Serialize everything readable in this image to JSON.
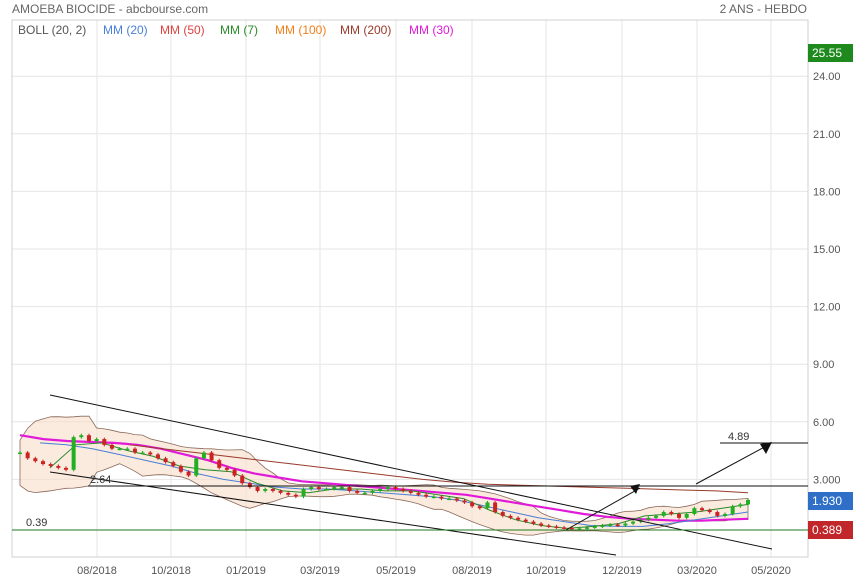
{
  "header": {
    "title": "AMOEBA BIOCIDE - abcbourse.com",
    "period": "2 ANS - HEBDO"
  },
  "legend": [
    {
      "label": "BOLL (20, 2)",
      "color": "#555555"
    },
    {
      "label": "MM (20)",
      "color": "#4a7fd6"
    },
    {
      "label": "MM (50)",
      "color": "#e04040"
    },
    {
      "label": "MM (7)",
      "color": "#2a8a2a"
    },
    {
      "label": "MM (100)",
      "color": "#f07f1a"
    },
    {
      "label": "MM (200)",
      "color": "#9a3a2a"
    },
    {
      "label": "MM (30)",
      "color": "#e01ad8"
    }
  ],
  "chart_data": {
    "type": "candlestick",
    "title": "AMOEBA BIOCIDE - abcbourse.com",
    "period": "2 ANS - HEBDO",
    "y_ticks": [
      "3.000",
      "6.00",
      "9.00",
      "12.00",
      "15.00",
      "18.00",
      "21.00",
      "24.00"
    ],
    "x_ticks": [
      "08/2018",
      "10/2018",
      "01/2019",
      "03/2019",
      "05/2019",
      "08/2019",
      "10/2019",
      "12/2019",
      "03/2020",
      "05/2020"
    ],
    "ylim": [
      0,
      26.8
    ],
    "price_labels": [
      {
        "text": "25.55",
        "value": 25.55,
        "color": "#1e8a1e"
      },
      {
        "text": "1.930",
        "value": 1.93,
        "color": "#2f6fc8"
      },
      {
        "text": "0.389",
        "value": 0.389,
        "color": "#c0262a"
      }
    ],
    "annotations": [
      {
        "text": "4.89",
        "value": 4.89
      },
      {
        "text": "2.64",
        "value": 2.64
      },
      {
        "text": "0.39",
        "value": 0.39
      }
    ],
    "close_series": [
      4.4,
      4.1,
      3.95,
      3.8,
      3.7,
      3.6,
      3.5,
      5.2,
      5.3,
      5.0,
      5.1,
      4.8,
      4.6,
      4.6,
      4.6,
      4.4,
      4.4,
      4.3,
      4.1,
      3.9,
      3.7,
      3.4,
      3.2,
      4.1,
      4.4,
      4.0,
      3.6,
      3.5,
      3.2,
      2.8,
      2.6,
      2.4,
      2.5,
      2.4,
      2.3,
      2.2,
      2.1,
      2.5,
      2.6,
      2.5,
      2.5,
      2.6,
      2.6,
      2.4,
      2.3,
      2.3,
      2.4,
      2.5,
      2.6,
      2.5,
      2.4,
      2.3,
      2.2,
      2.1,
      2.1,
      2.0,
      2.0,
      1.9,
      1.8,
      1.6,
      1.5,
      1.8,
      1.3,
      1.1,
      1.0,
      0.9,
      0.8,
      0.7,
      0.6,
      0.55,
      0.5,
      0.48,
      0.45,
      0.45,
      0.5,
      0.55,
      0.6,
      0.65,
      0.6,
      0.7,
      0.8,
      0.9,
      1.0,
      1.1,
      1.3,
      1.2,
      1.0,
      1.2,
      1.5,
      1.4,
      1.3,
      1.1,
      1.2,
      1.6,
      1.7,
      1.93
    ],
    "series": [
      {
        "name": "MM (30)",
        "color": "#e01ad8",
        "values": [
          5.3,
          5.1,
          5.0,
          4.95,
          4.9,
          4.8,
          4.6,
          4.3,
          4.0,
          3.6,
          3.3,
          3.1,
          2.9,
          2.8,
          2.7,
          2.6,
          2.5,
          2.4,
          2.3,
          2.2,
          2.0,
          1.8,
          1.6,
          1.4,
          1.2,
          1.05,
          0.95,
          0.9,
          0.85,
          0.85,
          0.9,
          0.95
        ]
      },
      {
        "name": "MM (200)",
        "color": "#9a3a2a",
        "values": [
          4.8,
          4.6,
          4.4,
          4.2,
          4.0,
          3.8,
          3.6,
          3.4,
          3.2,
          3.0,
          2.85,
          2.75,
          2.7,
          2.65,
          2.6,
          2.55,
          2.5,
          2.45,
          2.4,
          2.3
        ]
      },
      {
        "name": "MM (20)",
        "color": "#4a7fd6",
        "values": [
          4.9,
          4.8,
          4.6,
          4.3,
          4.0,
          3.7,
          3.3,
          3.0,
          2.8,
          2.6,
          2.5,
          2.5,
          2.4,
          2.3,
          2.2,
          2.1,
          1.9,
          1.6,
          1.3,
          1.0,
          0.8,
          0.6,
          0.55,
          0.55,
          0.7,
          0.9,
          1.1,
          1.3
        ]
      },
      {
        "name": "MM (7)",
        "color": "#2a8a2a",
        "values": [
          3.6,
          4.8,
          4.9,
          4.5,
          4.2,
          3.7,
          3.5,
          3.4,
          2.8,
          2.4,
          2.3,
          2.5,
          2.5,
          2.4,
          2.4,
          2.2,
          2.0,
          1.4,
          0.9,
          0.6,
          0.45,
          0.55,
          0.7,
          1.1,
          1.2,
          1.3,
          1.5,
          1.7
        ]
      }
    ]
  }
}
